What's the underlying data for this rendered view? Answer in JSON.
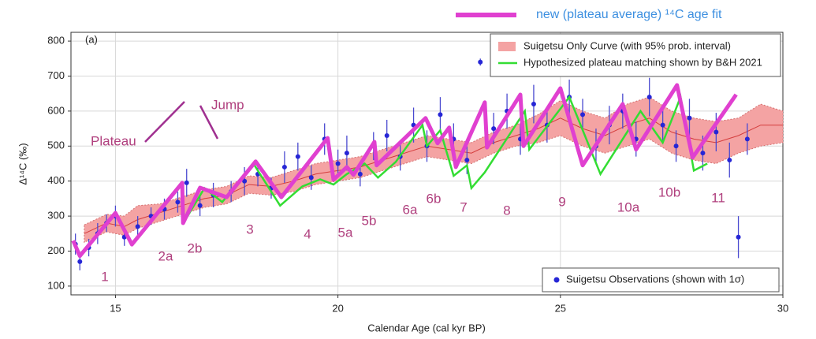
{
  "chart_data": {
    "type": "line",
    "panel_label": "(a)",
    "x_label": "Calendar Age (cal kyr BP)",
    "y_label": "Δ¹⁴C (‰)",
    "xlim": [
      14,
      30
    ],
    "xticks": [
      15,
      20,
      25,
      30
    ],
    "ylim": [
      75,
      825
    ],
    "yticks": [
      100,
      200,
      300,
      400,
      500,
      600,
      700,
      800
    ],
    "grid": true,
    "annotations": [
      "Plateau",
      "Jump"
    ],
    "region_labels": [
      "1",
      "2a",
      "2b",
      "3",
      "4",
      "5a",
      "5b",
      "6a",
      "6b",
      "7",
      "8",
      "9",
      "10a",
      "10b",
      "11"
    ],
    "series": [
      {
        "name": "Suigetsu Only Curve (with 95% prob. interval)",
        "color": "#f4a3a3",
        "line_color": "#d43c3c",
        "x": [
          14.3,
          14.8,
          15.2,
          15.5,
          16.0,
          16.5,
          17.0,
          17.5,
          18.0,
          18.5,
          19.0,
          19.5,
          20.0,
          20.5,
          21.0,
          21.5,
          22.0,
          22.5,
          23.0,
          23.5,
          24.0,
          24.5,
          25.0,
          25.5,
          26.0,
          26.5,
          27.0,
          27.5,
          28.0,
          28.5,
          29.0,
          29.5,
          30.0
        ],
        "values": [
          250,
          280,
          270,
          290,
          310,
          330,
          350,
          360,
          390,
          385,
          400,
          420,
          430,
          440,
          460,
          480,
          500,
          490,
          480,
          510,
          530,
          550,
          580,
          550,
          530,
          560,
          580,
          540,
          520,
          510,
          530,
          560,
          560
        ],
        "lower": [
          225,
          255,
          245,
          265,
          285,
          305,
          325,
          335,
          365,
          360,
          370,
          390,
          400,
          410,
          430,
          450,
          470,
          460,
          450,
          480,
          500,
          510,
          530,
          500,
          480,
          500,
          520,
          480,
          460,
          450,
          480,
          500,
          510
        ],
        "upper": [
          275,
          305,
          300,
          330,
          335,
          355,
          375,
          385,
          415,
          410,
          430,
          450,
          460,
          470,
          490,
          510,
          530,
          520,
          510,
          540,
          560,
          590,
          630,
          600,
          580,
          620,
          640,
          600,
          580,
          570,
          580,
          620,
          600
        ]
      },
      {
        "name": "Hypothesized plateau matching shown by B&H 2021",
        "color": "#33dd33",
        "x": [
          15.9,
          16.5,
          16.55,
          17.0,
          17.4,
          18.1,
          18.7,
          19.2,
          19.6,
          19.9,
          20.2,
          20.6,
          20.9,
          21.3,
          21.9,
          22.0,
          22.3,
          22.6,
          22.9,
          23.0,
          23.3,
          24.2,
          24.3,
          25.2,
          25.9,
          26.8,
          27.3,
          27.7,
          28.0,
          28.3
        ],
        "values": [
          300,
          390,
          285,
          380,
          340,
          450,
          330,
          385,
          405,
          390,
          420,
          450,
          410,
          455,
          560,
          500,
          545,
          415,
          445,
          380,
          425,
          600,
          490,
          640,
          420,
          600,
          510,
          640,
          430,
          450
        ]
      },
      {
        "name": "new (plateau average) ¹⁴C age fit",
        "color": "#e040d0",
        "x": [
          14.05,
          14.2,
          15.0,
          15.37,
          16.5,
          16.52,
          16.9,
          17.5,
          18.15,
          18.73,
          19.77,
          19.9,
          20.2,
          20.35,
          20.82,
          20.87,
          21.97,
          22.24,
          22.5,
          22.65,
          23.3,
          23.35,
          24.1,
          24.17,
          25.0,
          25.5,
          26.4,
          26.7,
          27.62,
          27.97,
          28.95
        ],
        "values": [
          230,
          186,
          309,
          219,
          395,
          280,
          381,
          354,
          456,
          354,
          523,
          404,
          440,
          418,
          512,
          445,
          580,
          508,
          553,
          440,
          625,
          496,
          647,
          500,
          665,
          445,
          620,
          490,
          674,
          467,
          647
        ]
      },
      {
        "name": "Suigetsu Observations (shown with 1σ)",
        "color": "#2626d6",
        "x": [
          14.1,
          14.2,
          14.4,
          14.6,
          14.8,
          15.0,
          15.2,
          15.5,
          15.8,
          16.1,
          16.4,
          16.6,
          16.9,
          17.2,
          17.6,
          17.9,
          18.2,
          18.5,
          18.8,
          19.1,
          19.4,
          19.7,
          20.0,
          20.2,
          20.5,
          20.8,
          21.1,
          21.4,
          21.7,
          22.0,
          22.3,
          22.6,
          22.9,
          23.2,
          23.5,
          23.8,
          24.1,
          24.4,
          24.7,
          24.9,
          25.2,
          25.5,
          25.8,
          26.1,
          26.4,
          26.7,
          27.0,
          27.3,
          27.6,
          27.9,
          28.2,
          28.5,
          28.8,
          29.0,
          29.2
        ],
        "values": [
          220,
          170,
          210,
          250,
          280,
          300,
          240,
          270,
          300,
          320,
          340,
          395,
          330,
          360,
          370,
          400,
          420,
          380,
          440,
          470,
          410,
          520,
          450,
          480,
          420,
          500,
          530,
          470,
          560,
          500,
          590,
          520,
          460,
          740,
          550,
          600,
          520,
          620,
          560,
          710,
          640,
          590,
          500,
          560,
          600,
          520,
          640,
          560,
          500,
          580,
          480,
          540,
          460,
          240,
          520
        ],
        "errors": [
          30,
          25,
          25,
          30,
          25,
          30,
          25,
          30,
          25,
          30,
          30,
          40,
          30,
          35,
          30,
          40,
          35,
          30,
          45,
          40,
          35,
          45,
          40,
          50,
          35,
          40,
          45,
          40,
          50,
          45,
          50,
          45,
          40,
          10,
          45,
          50,
          45,
          55,
          50,
          10,
          50,
          45,
          50,
          55,
          50,
          50,
          55,
          50,
          45,
          55,
          50,
          55,
          50,
          60,
          45
        ]
      }
    ]
  }
}
